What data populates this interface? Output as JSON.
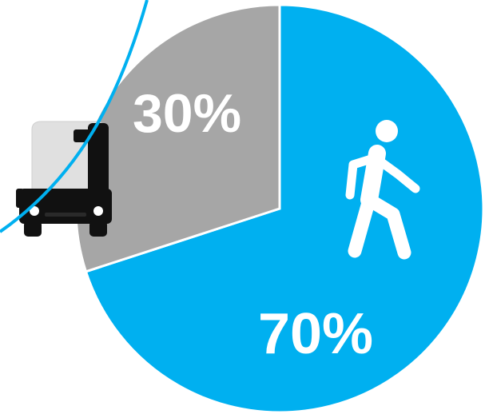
{
  "chart_data": {
    "type": "pie",
    "title": "",
    "slices": [
      {
        "label": "30%",
        "value": 30,
        "icon": "bus-icon",
        "color": "#a6a6a6"
      },
      {
        "label": "70%",
        "value": 70,
        "icon": "pedestrian-walking-icon",
        "color": "#00b0f0"
      }
    ],
    "legend": "none",
    "slice_border_color": "#ffffff",
    "decoration_arc_color": "#00b0f0"
  }
}
